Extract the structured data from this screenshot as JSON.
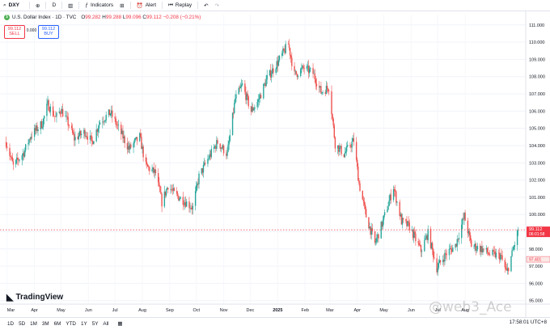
{
  "toolbar": {
    "symbol": "DXY",
    "interval": "D",
    "indicators": "Indicators",
    "alert": "Alert",
    "replay": "Replay"
  },
  "legend": {
    "title": "U.S. Dollar Index · 1D · TVC",
    "open_label": "O",
    "open": "99.282",
    "high_label": "H",
    "high": "99.288",
    "low_label": "L",
    "low": "99.096",
    "close_label": "C",
    "close": "99.112",
    "change": "−0.208 (−0.21%)"
  },
  "trade": {
    "sell_price": "99.112",
    "sell_label": "SELL",
    "spread": "0.000",
    "buy_price": "99.112",
    "buy_label": "BUY"
  },
  "price_labels": {
    "last": "99.112",
    "countdown": "06:01:58",
    "alt": "97.401"
  },
  "bottombar": {
    "ranges": [
      "1D",
      "5D",
      "1M",
      "3M",
      "6M",
      "YTD",
      "1Y",
      "5Y",
      "All"
    ],
    "time": "17:58:01 UTC+8"
  },
  "branding": {
    "logo": "TradingView",
    "watermark": "@web3_Ace"
  },
  "colors": {
    "up": "#26a69a",
    "down": "#ef5350",
    "last_price": "#f23645",
    "accent": "#2962ff"
  },
  "chart_data": {
    "type": "candlestick",
    "title": "U.S. Dollar Index · 1D · TVC",
    "x_tick_labels": [
      "Mar",
      "Apr",
      "May",
      "Jun",
      "Jul",
      "Aug",
      "Sep",
      "Oct",
      "Nov",
      "Dec",
      "2025",
      "Feb",
      "Mar",
      "Apr",
      "May",
      "Jun",
      "Jul",
      "Aug"
    ],
    "y_tick_labels": [
      "95.000",
      "96.000",
      "97.000",
      "98.000",
      "99.000",
      "100.000",
      "101.000",
      "102.000",
      "103.000",
      "104.000",
      "105.000",
      "106.000",
      "107.000",
      "108.000",
      "109.000",
      "110.000",
      "111.000"
    ],
    "ylim": [
      94.8,
      111.6
    ],
    "last_price": 99.112,
    "series": [
      {
        "values": [
          {
            "date": "2024-02-29",
            "value": 104.2
          },
          {
            "date": "2024-03-08",
            "value": 102.8
          },
          {
            "date": "2024-03-20",
            "value": 103.6
          },
          {
            "date": "2024-03-28",
            "value": 104.6
          },
          {
            "date": "2024-04-10",
            "value": 105.3
          },
          {
            "date": "2024-04-16",
            "value": 106.4
          },
          {
            "date": "2024-04-25",
            "value": 105.6
          },
          {
            "date": "2024-05-01",
            "value": 106.1
          },
          {
            "date": "2024-05-10",
            "value": 105.2
          },
          {
            "date": "2024-05-16",
            "value": 104.4
          },
          {
            "date": "2024-05-28",
            "value": 104.8
          },
          {
            "date": "2024-06-05",
            "value": 104.2
          },
          {
            "date": "2024-06-14",
            "value": 105.4
          },
          {
            "date": "2024-06-26",
            "value": 105.9
          },
          {
            "date": "2024-07-05",
            "value": 105.0
          },
          {
            "date": "2024-07-17",
            "value": 103.8
          },
          {
            "date": "2024-07-29",
            "value": 104.5
          },
          {
            "date": "2024-08-05",
            "value": 102.8
          },
          {
            "date": "2024-08-16",
            "value": 102.4
          },
          {
            "date": "2024-08-23",
            "value": 100.7
          },
          {
            "date": "2024-08-30",
            "value": 101.7
          },
          {
            "date": "2024-09-06",
            "value": 101.2
          },
          {
            "date": "2024-09-17",
            "value": 100.8
          },
          {
            "date": "2024-09-27",
            "value": 100.4
          },
          {
            "date": "2024-10-04",
            "value": 102.2
          },
          {
            "date": "2024-10-15",
            "value": 103.3
          },
          {
            "date": "2024-10-25",
            "value": 104.2
          },
          {
            "date": "2024-11-05",
            "value": 103.5
          },
          {
            "date": "2024-11-14",
            "value": 106.7
          },
          {
            "date": "2024-11-22",
            "value": 107.5
          },
          {
            "date": "2024-12-02",
            "value": 106.0
          },
          {
            "date": "2024-12-10",
            "value": 106.6
          },
          {
            "date": "2024-12-20",
            "value": 107.9
          },
          {
            "date": "2025-01-02",
            "value": 108.9
          },
          {
            "date": "2025-01-13",
            "value": 109.9
          },
          {
            "date": "2025-01-20",
            "value": 108.1
          },
          {
            "date": "2025-01-31",
            "value": 108.5
          },
          {
            "date": "2025-02-10",
            "value": 108.2
          },
          {
            "date": "2025-02-19",
            "value": 107.1
          },
          {
            "date": "2025-02-28",
            "value": 107.4
          },
          {
            "date": "2025-03-07",
            "value": 104.1
          },
          {
            "date": "2025-03-17",
            "value": 103.5
          },
          {
            "date": "2025-03-28",
            "value": 104.3
          },
          {
            "date": "2025-04-03",
            "value": 101.8
          },
          {
            "date": "2025-04-11",
            "value": 99.9
          },
          {
            "date": "2025-04-21",
            "value": 98.3
          },
          {
            "date": "2025-04-30",
            "value": 99.6
          },
          {
            "date": "2025-05-12",
            "value": 101.6
          },
          {
            "date": "2025-05-21",
            "value": 99.6
          },
          {
            "date": "2025-05-30",
            "value": 99.3
          },
          {
            "date": "2025-06-12",
            "value": 97.9
          },
          {
            "date": "2025-06-20",
            "value": 98.9
          },
          {
            "date": "2025-06-30",
            "value": 96.9
          },
          {
            "date": "2025-07-10",
            "value": 97.7
          },
          {
            "date": "2025-07-21",
            "value": 98.2
          },
          {
            "date": "2025-07-31",
            "value": 99.9
          },
          {
            "date": "2025-08-08",
            "value": 98.2
          },
          {
            "date": "2025-08-20",
            "value": 98.0
          },
          {
            "date": "2025-08-29",
            "value": 97.7
          },
          {
            "date": "2025-09-10",
            "value": 97.6
          },
          {
            "date": "2025-09-17",
            "value": 96.6
          },
          {
            "date": "2025-09-24",
            "value": 97.9
          },
          {
            "date": "2025-09-30",
            "value": 99.1
          }
        ]
      }
    ]
  }
}
